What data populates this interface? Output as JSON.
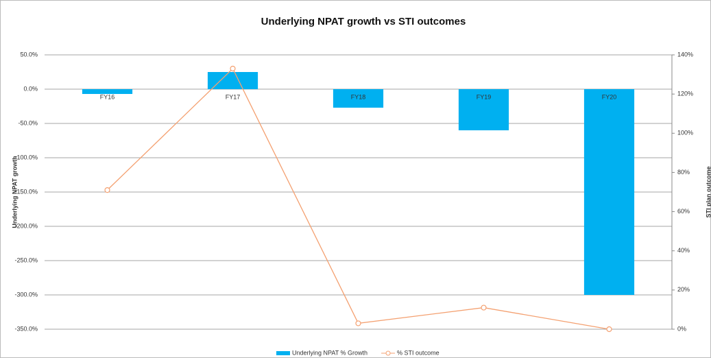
{
  "chart_data": {
    "type": "bar_line",
    "title": "Underlying NPAT growth vs STI outcomes",
    "y_label": "Underlying NPAT growth",
    "y2_label": "STI plan outcome",
    "categories": [
      "FY16",
      "FY17",
      "FY18",
      "FY19",
      "FY20"
    ],
    "series": [
      {
        "name": "Underlying NPAT % Growth",
        "type": "bar",
        "color": "#00b0f0",
        "values": [
          -7,
          25,
          -27,
          -60,
          -300
        ]
      },
      {
        "name": "% STI outcome",
        "type": "line",
        "axis": "y2",
        "color": "#f4a070",
        "values": [
          71,
          133,
          3,
          11,
          0
        ]
      }
    ],
    "ylim": [
      -350,
      50
    ],
    "yticks": [
      {
        "value": 50,
        "label": "50.0%"
      },
      {
        "value": 0,
        "label": "0.0%"
      },
      {
        "value": -50,
        "label": "-50.0%"
      },
      {
        "value": -100,
        "label": "-100.0%"
      },
      {
        "value": -150,
        "label": "-150.0%"
      },
      {
        "value": -200,
        "label": "-200.0%"
      },
      {
        "value": -250,
        "label": "-250.0%"
      },
      {
        "value": -300,
        "label": "-300.0%"
      },
      {
        "value": -350,
        "label": "-350.0%"
      }
    ],
    "y2lim": [
      0,
      140
    ],
    "y2ticks": [
      {
        "value": 0,
        "label": "0%"
      },
      {
        "value": 20,
        "label": "20%"
      },
      {
        "value": 40,
        "label": "40%"
      },
      {
        "value": 60,
        "label": "60%"
      },
      {
        "value": 80,
        "label": "80%"
      },
      {
        "value": 100,
        "label": "100%"
      },
      {
        "value": 120,
        "label": "120%"
      },
      {
        "value": 140,
        "label": "140%"
      }
    ],
    "grid": true,
    "legend": "bottom"
  }
}
